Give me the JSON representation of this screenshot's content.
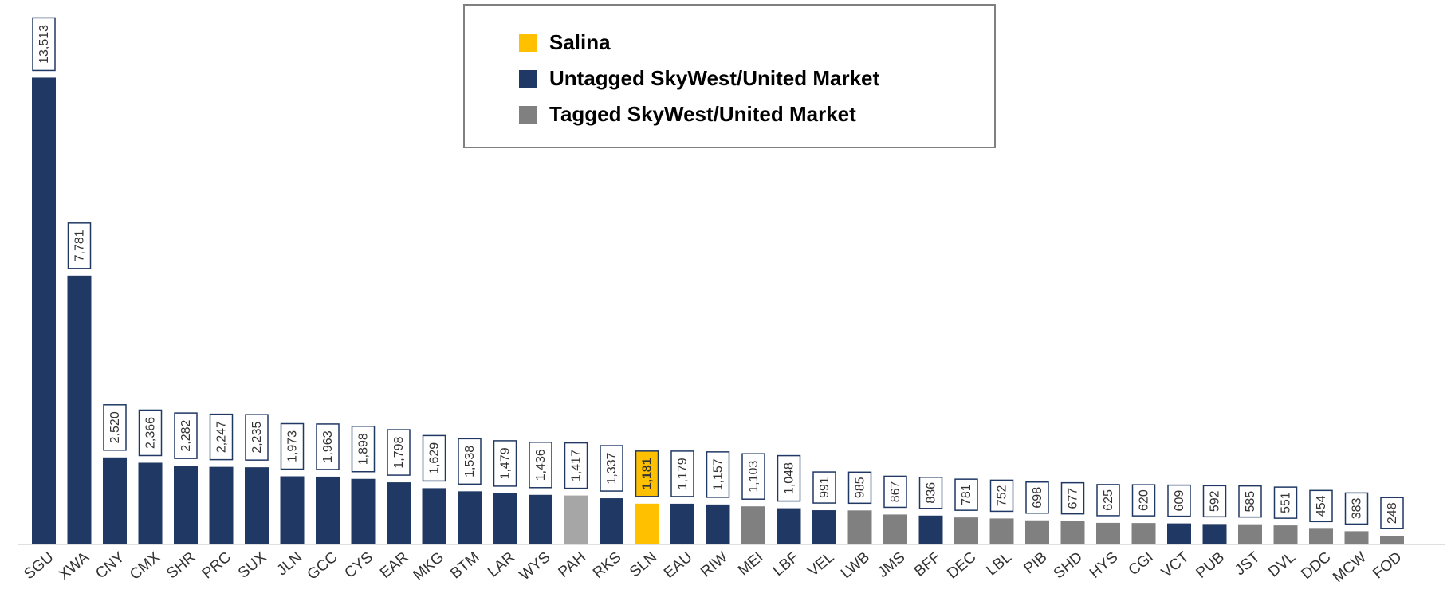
{
  "chart_data": {
    "type": "bar",
    "categories": [
      "SGU",
      "XWA",
      "CNY",
      "CMX",
      "SHR",
      "PRC",
      "SUX",
      "JLN",
      "GCC",
      "CYS",
      "EAR",
      "MKG",
      "BTM",
      "LAR",
      "WYS",
      "PAH",
      "RKS",
      "SLN",
      "EAU",
      "RIW",
      "MEI",
      "LBF",
      "VEL",
      "LWB",
      "JMS",
      "BFF",
      "DEC",
      "LBL",
      "PIB",
      "SHD",
      "HYS",
      "CGI",
      "VCT",
      "PUB",
      "JST",
      "DVL",
      "DDC",
      "MCW",
      "FOD"
    ],
    "values": [
      13513,
      7781,
      2520,
      2366,
      2282,
      2247,
      2235,
      1973,
      1963,
      1898,
      1798,
      1629,
      1538,
      1479,
      1436,
      1417,
      1337,
      1181,
      1179,
      1157,
      1103,
      1048,
      991,
      985,
      867,
      836,
      781,
      752,
      698,
      677,
      625,
      620,
      609,
      592,
      585,
      551,
      454,
      383,
      248
    ],
    "value_labels": [
      "13,513",
      "7,781",
      "2,520",
      "2,366",
      "2,282",
      "2,247",
      "2,235",
      "1,973",
      "1,963",
      "1,898",
      "1,798",
      "1,629",
      "1,538",
      "1,479",
      "1,436",
      "1,417",
      "1,337",
      "1,181",
      "1,179",
      "1,157",
      "1,103",
      "1,048",
      "991",
      "985",
      "867",
      "836",
      "781",
      "752",
      "698",
      "677",
      "625",
      "620",
      "609",
      "592",
      "585",
      "551",
      "454",
      "383",
      "248"
    ],
    "colors": [
      "#203864",
      "#203864",
      "#203864",
      "#203864",
      "#203864",
      "#203864",
      "#203864",
      "#203864",
      "#203864",
      "#203864",
      "#203864",
      "#203864",
      "#203864",
      "#203864",
      "#203864",
      "#a6a6a6",
      "#203864",
      "#ffc000",
      "#203864",
      "#203864",
      "#808080",
      "#203864",
      "#203864",
      "#808080",
      "#808080",
      "#203864",
      "#808080",
      "#808080",
      "#808080",
      "#808080",
      "#808080",
      "#808080",
      "#203864",
      "#203864",
      "#808080",
      "#808080",
      "#808080",
      "#808080",
      "#808080"
    ],
    "ylim": [
      0,
      15000
    ],
    "legend": [
      {
        "name": "Salina",
        "color": "#ffc000"
      },
      {
        "name": "Untagged SkyWest/United Market",
        "color": "#203864"
      },
      {
        "name": "Tagged SkyWest/United Market",
        "color": "#808080"
      }
    ]
  }
}
